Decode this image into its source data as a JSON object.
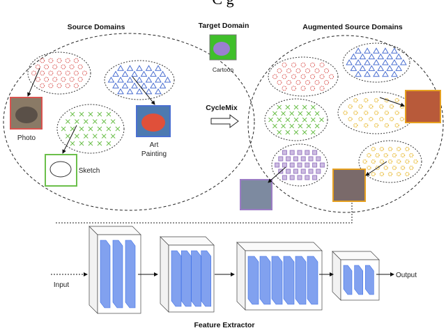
{
  "title_fragment": "C     g",
  "source": {
    "title": "Source Domains",
    "photo": "Photo",
    "sketch": "Sketch",
    "art_line1": "Art",
    "art_line2": "Painting"
  },
  "target": {
    "title": "Target Domain",
    "cartoon": "Cartoon"
  },
  "method": {
    "label": "CycleMix"
  },
  "augmented": {
    "title": "Augmented Source Domains"
  },
  "extractor": {
    "input": "Input",
    "output": "Output",
    "title": "Feature Extractor"
  },
  "colors": {
    "photo": "#d9534f",
    "art": "#4a6fd1",
    "sketch": "#6bbf4a",
    "yellow": "#e6b422",
    "purple": "#9b7cc4",
    "layer": "#3d6fe6"
  }
}
